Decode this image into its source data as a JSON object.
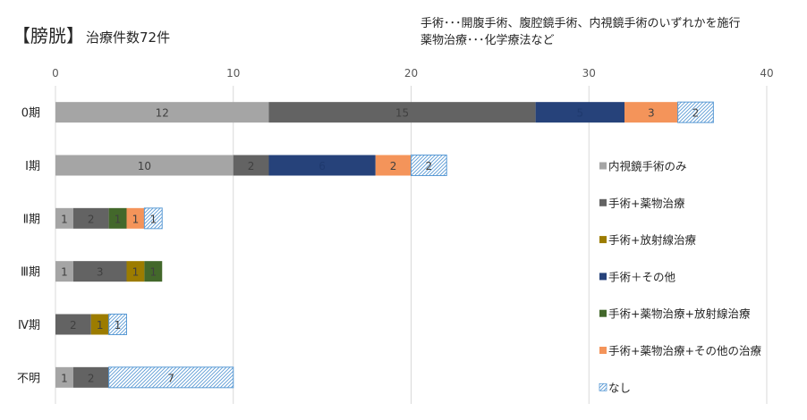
{
  "chart_data": {
    "type": "bar",
    "orientation": "horizontal",
    "stacked": true,
    "title": "【膀胱】",
    "subtitle": "治療件数72件",
    "notes": [
      "手術･･･開腹手術、腹腔鏡手術、内視鏡手術のいずれかを施行",
      "薬物治療･･･化学療法など"
    ],
    "categories": [
      "0期",
      "Ⅰ期",
      "Ⅱ期",
      "Ⅲ期",
      "Ⅳ期",
      "不明"
    ],
    "xlim": [
      0,
      40
    ],
    "xticks": [
      "0",
      "10",
      "20",
      "30",
      "40"
    ],
    "grid": true,
    "legend_position": "right",
    "series": [
      {
        "name": "内視鏡手術のみ",
        "color": "#a5a5a5",
        "values": [
          12,
          10,
          1,
          1,
          0,
          1
        ]
      },
      {
        "name": "手術+薬物治療",
        "color": "#636363",
        "values": [
          15,
          2,
          2,
          3,
          2,
          2
        ]
      },
      {
        "name": "手術+放射線治療",
        "color": "#9c7c00",
        "values": [
          0,
          0,
          0,
          1,
          1,
          0
        ]
      },
      {
        "name": "手術＋その他",
        "color": "#26427a",
        "values": [
          5,
          6,
          0,
          0,
          0,
          0
        ]
      },
      {
        "name": "手術+薬物治療+放射線治療",
        "color": "#43682b",
        "values": [
          0,
          0,
          1,
          1,
          0,
          0
        ]
      },
      {
        "name": "手術+薬物治療+その他の治療",
        "color": "#f4945a",
        "values": [
          3,
          2,
          1,
          0,
          0,
          0
        ]
      },
      {
        "name": "なし",
        "color": "#5b9bd5",
        "pattern": "hatched",
        "values": [
          2,
          2,
          1,
          0,
          1,
          7
        ]
      }
    ]
  }
}
